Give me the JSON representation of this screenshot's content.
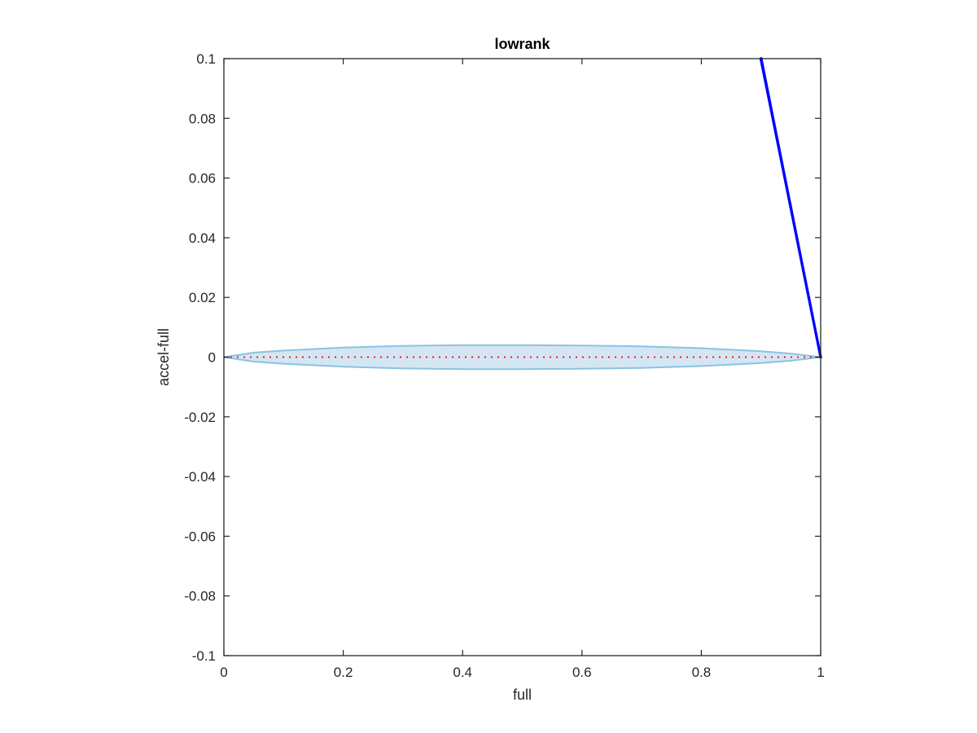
{
  "chart_data": {
    "type": "scatter",
    "title": "lowrank",
    "xlabel": "full",
    "ylabel": "accel-full",
    "xlim": [
      0,
      1
    ],
    "ylim": [
      -0.1,
      0.1
    ],
    "xticks": [
      "0",
      "0.2",
      "0.4",
      "0.6",
      "0.8",
      "1"
    ],
    "yticks": [
      "0.1",
      "0.08",
      "0.06",
      "0.04",
      "0.02",
      "0",
      "-0.02",
      "-0.04",
      "-0.06",
      "-0.08",
      "-0.1"
    ],
    "xtick_values": [
      0,
      0.2,
      0.4,
      0.6,
      0.8,
      1
    ],
    "ytick_values": [
      0.1,
      0.08,
      0.06,
      0.04,
      0.02,
      0,
      -0.02,
      -0.04,
      -0.06,
      -0.08,
      -0.1
    ],
    "grid": false,
    "band": {
      "description": "shaded confidence band around y=0",
      "x": [
        0,
        0.05,
        0.1,
        0.2,
        0.3,
        0.4,
        0.5,
        0.6,
        0.7,
        0.8,
        0.9,
        0.95,
        1
      ],
      "half_width": [
        0,
        0.0015,
        0.0022,
        0.0032,
        0.0038,
        0.004,
        0.004,
        0.0039,
        0.0036,
        0.003,
        0.002,
        0.0012,
        0
      ],
      "fill": "#d4e6f4",
      "edge": "#8cc3e0"
    },
    "zero_line": {
      "y": 0,
      "color": "#ff0000",
      "style": "dotted"
    },
    "series": [
      {
        "color": "#0000ff",
        "marker": "dot",
        "line_from": [
          0.9,
          0.1
        ],
        "line_to": [
          1.0,
          0.0
        ],
        "point_count": 220
      }
    ],
    "colors": {
      "points": "#0000ff",
      "zero_line": "#ff0000",
      "band_fill": "#d4e6f4",
      "band_edge": "#8cc3e0",
      "axes": "#262626"
    }
  }
}
